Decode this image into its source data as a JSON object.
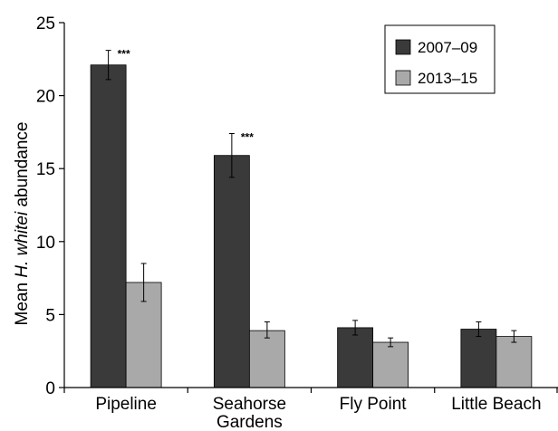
{
  "chart_data": {
    "type": "bar",
    "categories": [
      "Pipeline",
      "Seahorse Gardens",
      "Fly Point",
      "Little Beach"
    ],
    "category_lines": [
      [
        "Pipeline"
      ],
      [
        "Seahorse",
        "Gardens"
      ],
      [
        "Fly Point"
      ],
      [
        "Little Beach"
      ]
    ],
    "series": [
      {
        "name": "2007–09",
        "color": "#3a3a3a",
        "values": [
          22.1,
          15.9,
          4.1,
          4.0
        ],
        "err_low": [
          21.1,
          14.4,
          3.6,
          3.5
        ],
        "err_high": [
          23.1,
          17.4,
          4.6,
          4.5
        ],
        "annotations": [
          "***",
          "***",
          "",
          ""
        ]
      },
      {
        "name": "2013–15",
        "color": "#a9a9a9",
        "values": [
          7.2,
          3.9,
          3.1,
          3.5
        ],
        "err_low": [
          5.9,
          3.4,
          2.8,
          3.1
        ],
        "err_high": [
          8.5,
          4.5,
          3.4,
          3.9
        ],
        "annotations": [
          "",
          "",
          "",
          ""
        ]
      }
    ],
    "ylabel_prefix": "Mean ",
    "ylabel_italic": "H. whitei",
    "ylabel_suffix": " abundance",
    "ylim": [
      0,
      25
    ],
    "yticks": [
      0,
      5,
      10,
      15,
      20,
      25
    ],
    "grid": false,
    "legend_position": "top-right"
  }
}
